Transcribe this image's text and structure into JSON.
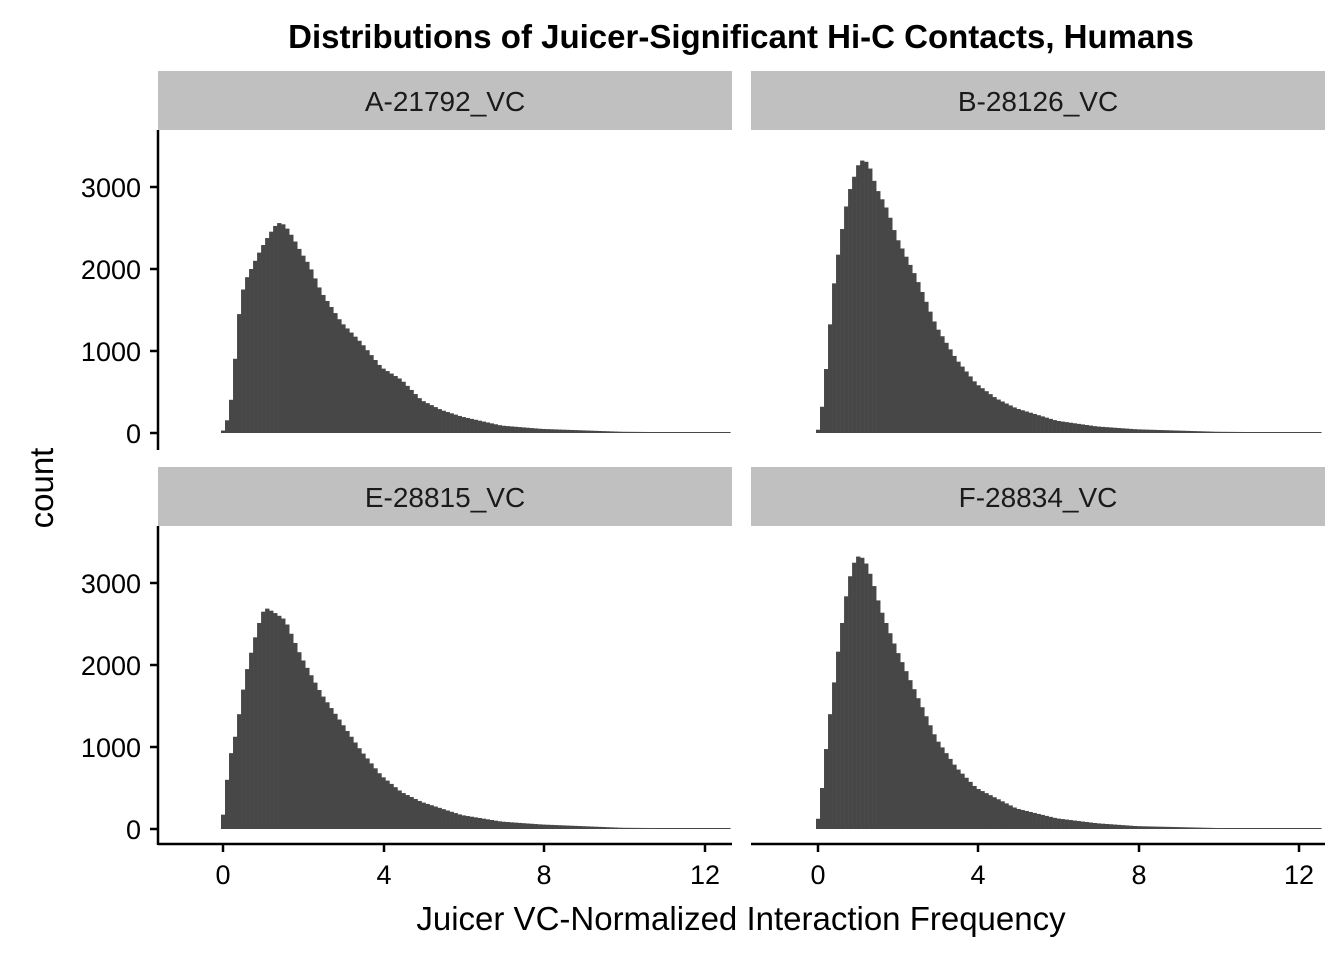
{
  "chart_data": {
    "type": "bar",
    "subtype": "faceted-histogram",
    "title": "Distributions of Juicer-Significant Hi-C Contacts, Humans",
    "xlabel": "Juicer VC-Normalized Interaction Frequency",
    "ylabel": "count",
    "xlim": [
      -1.6,
      12.6
    ],
    "ylim": [
      -140,
      3700
    ],
    "x_ticks": [
      0,
      4,
      8,
      12
    ],
    "y_ticks": [
      0,
      1000,
      2000,
      3000
    ],
    "bin_width": 0.1,
    "grid": false,
    "bar_color": "#474747",
    "strip_color": "#c0c0c0",
    "panels": [
      {
        "label": "A-21792_VC",
        "control_points": [
          [
            0,
            0
          ],
          [
            0.1,
            60
          ],
          [
            0.2,
            250
          ],
          [
            0.3,
            560
          ],
          [
            0.4,
            1250
          ],
          [
            0.5,
            1650
          ],
          [
            0.6,
            1850
          ],
          [
            0.8,
            2050
          ],
          [
            1.0,
            2250
          ],
          [
            1.2,
            2420
          ],
          [
            1.4,
            2560
          ],
          [
            1.5,
            2560
          ],
          [
            1.6,
            2530
          ],
          [
            1.8,
            2380
          ],
          [
            2.0,
            2200
          ],
          [
            2.2,
            2050
          ],
          [
            2.5,
            1720
          ],
          [
            2.8,
            1500
          ],
          [
            3.0,
            1350
          ],
          [
            3.5,
            1100
          ],
          [
            4.0,
            800
          ],
          [
            4.5,
            650
          ],
          [
            5.0,
            400
          ],
          [
            5.5,
            280
          ],
          [
            6.0,
            200
          ],
          [
            7.0,
            90
          ],
          [
            8.0,
            50
          ],
          [
            10.0,
            15
          ],
          [
            12.5,
            5
          ]
        ]
      },
      {
        "label": "B-28126_VC",
        "control_points": [
          [
            0,
            0
          ],
          [
            0.1,
            80
          ],
          [
            0.2,
            560
          ],
          [
            0.3,
            1000
          ],
          [
            0.4,
            1650
          ],
          [
            0.6,
            2350
          ],
          [
            0.8,
            2900
          ],
          [
            1.0,
            3200
          ],
          [
            1.1,
            3330
          ],
          [
            1.3,
            3300
          ],
          [
            1.5,
            3000
          ],
          [
            1.8,
            2700
          ],
          [
            2.0,
            2400
          ],
          [
            2.5,
            1900
          ],
          [
            3.0,
            1300
          ],
          [
            3.5,
            900
          ],
          [
            4.0,
            600
          ],
          [
            4.5,
            420
          ],
          [
            5.0,
            300
          ],
          [
            6.0,
            150
          ],
          [
            7.0,
            80
          ],
          [
            8.0,
            45
          ],
          [
            10.0,
            15
          ],
          [
            12.5,
            5
          ]
        ]
      },
      {
        "label": "E-28815_VC",
        "control_points": [
          [
            0,
            0
          ],
          [
            0.1,
            350
          ],
          [
            0.2,
            850
          ],
          [
            0.3,
            1000
          ],
          [
            0.4,
            1250
          ],
          [
            0.6,
            1850
          ],
          [
            0.8,
            2250
          ],
          [
            1.0,
            2600
          ],
          [
            1.1,
            2700
          ],
          [
            1.3,
            2650
          ],
          [
            1.6,
            2550
          ],
          [
            2.0,
            2100
          ],
          [
            2.5,
            1650
          ],
          [
            3.0,
            1300
          ],
          [
            3.5,
            950
          ],
          [
            4.0,
            650
          ],
          [
            4.5,
            450
          ],
          [
            5.0,
            330
          ],
          [
            6.0,
            170
          ],
          [
            7.0,
            90
          ],
          [
            8.0,
            55
          ],
          [
            10.0,
            15
          ],
          [
            12.5,
            5
          ]
        ]
      },
      {
        "label": "F-28834_VC",
        "control_points": [
          [
            0,
            0
          ],
          [
            0.1,
            250
          ],
          [
            0.2,
            750
          ],
          [
            0.3,
            1200
          ],
          [
            0.4,
            1600
          ],
          [
            0.6,
            2350
          ],
          [
            0.8,
            3000
          ],
          [
            1.0,
            3330
          ],
          [
            1.2,
            3300
          ],
          [
            1.4,
            3050
          ],
          [
            1.6,
            2700
          ],
          [
            2.0,
            2200
          ],
          [
            2.5,
            1650
          ],
          [
            3.0,
            1100
          ],
          [
            3.5,
            750
          ],
          [
            4.0,
            500
          ],
          [
            5.0,
            250
          ],
          [
            6.0,
            130
          ],
          [
            7.0,
            70
          ],
          [
            8.0,
            35
          ],
          [
            10.0,
            12
          ],
          [
            12.5,
            4
          ]
        ]
      }
    ]
  },
  "labels": {
    "title": "Distributions of Juicer-Significant Hi-C Contacts, Humans",
    "xlabel": "Juicer VC-Normalized Interaction Frequency",
    "ylabel": "count",
    "x_tick_labels": [
      "0",
      "4",
      "8",
      "12"
    ],
    "y_tick_labels": [
      "0",
      "1000",
      "2000",
      "3000"
    ],
    "strips": [
      "A-21792_VC",
      "B-28126_VC",
      "E-28815_VC",
      "F-28834_VC"
    ]
  }
}
